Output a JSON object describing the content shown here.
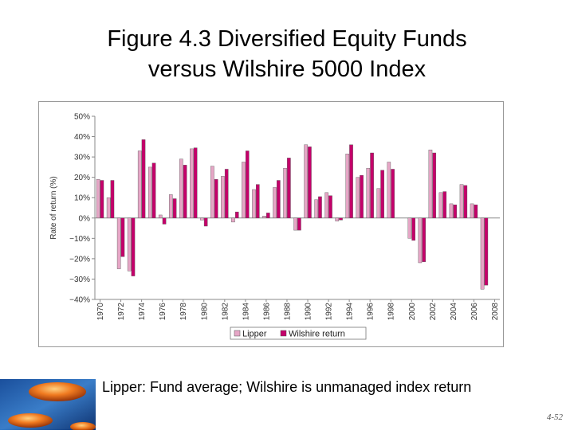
{
  "slide": {
    "title_line1": "Figure 4.3 Diversified Equity Funds",
    "title_line2": "versus Wilshire 5000 Index",
    "caption": "Lipper: Fund average;  Wilshire is unmanaged index return",
    "page_number": "4-52"
  },
  "chart_data": {
    "type": "bar",
    "title": "",
    "xlabel": "",
    "ylabel": "Rate of return (%)",
    "ylim": [
      -40,
      50
    ],
    "yticks": [
      50,
      40,
      30,
      20,
      10,
      0,
      -10,
      -20,
      -30,
      -40
    ],
    "ytick_labels": [
      "50%",
      "40%",
      "30%",
      "20%",
      "10%",
      "0%",
      "−10%",
      "−20%",
      "−30%",
      "−40%"
    ],
    "categories": [
      "1970",
      "1971",
      "1972",
      "1973",
      "1974",
      "1975",
      "1976",
      "1977",
      "1978",
      "1979",
      "1980",
      "1981",
      "1982",
      "1983",
      "1984",
      "1985",
      "1986",
      "1987",
      "1988",
      "1989",
      "1990",
      "1991",
      "1992",
      "1993",
      "1994",
      "1995",
      "1996",
      "1997",
      "1998",
      "1999",
      "2000",
      "2001",
      "2002",
      "2003",
      "2004",
      "2005",
      "2006",
      "2007",
      "2008"
    ],
    "tick_labels": [
      "1970",
      "1972",
      "1974",
      "1976",
      "1978",
      "1980",
      "1982",
      "1984",
      "1986",
      "1988",
      "1990",
      "1992",
      "1994",
      "1996",
      "1998",
      "2000",
      "2002",
      "2004",
      "2006",
      "2008"
    ],
    "legend_position": "bottom",
    "colors": {
      "lipper": "#e6a6c6",
      "wilshire": "#c4006a",
      "axis": "#888888"
    },
    "series": [
      {
        "name": "Lipper",
        "values": [
          19,
          10,
          -25,
          -26,
          33,
          25,
          1.5,
          11.5,
          29,
          34,
          -1,
          25.5,
          20.5,
          -2,
          27.5,
          14,
          1,
          15,
          24.5,
          -6,
          36,
          9,
          12.5,
          -1.5,
          31.5,
          20,
          24.5,
          14.5,
          27.5,
          0,
          -10,
          -22,
          33.5,
          12.5,
          7,
          16.5,
          7,
          -35,
          0
        ]
      },
      {
        "name": "Wilshire return",
        "values": [
          18.5,
          18.5,
          -19,
          -28.5,
          38.5,
          27,
          -3,
          9.5,
          26,
          34.5,
          -4,
          19,
          24,
          3,
          33,
          16.5,
          2.5,
          18.5,
          29.5,
          -6,
          35,
          10.5,
          11,
          -1,
          36,
          21,
          32,
          23.5,
          24,
          0,
          -11,
          -21.5,
          32,
          13,
          6.5,
          16,
          6.5,
          -33,
          0
        ]
      }
    ]
  }
}
